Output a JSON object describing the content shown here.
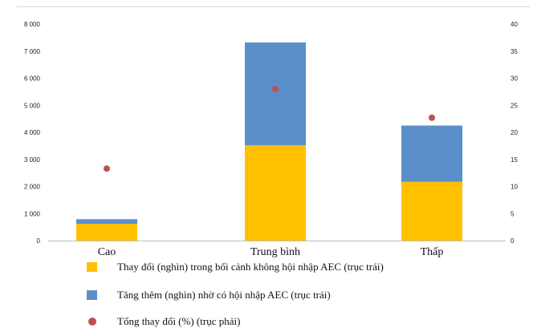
{
  "chart_data": {
    "type": "bar",
    "stacked": true,
    "categories": [
      "Cao",
      "Trung bình",
      "Thấp"
    ],
    "series": [
      {
        "name": "Thay đổi (nghìn) trong bối cảnh không hội nhập AEC (trục trái)",
        "axis": "left",
        "color": "#FFC000",
        "values": [
          620,
          3520,
          2170
        ]
      },
      {
        "name": "Tăng thêm (nghìn) nhờ có hội nhập AEC (trục trái)",
        "axis": "left",
        "color": "#5B8FC9",
        "values": [
          170,
          3800,
          2080
        ]
      },
      {
        "name": "Tổng thay đổi (%) (trục phải)",
        "axis": "right",
        "kind": "scatter",
        "color": "#C0504D",
        "values": [
          13.3,
          28,
          22.7
        ]
      }
    ],
    "ylim_left": [
      0,
      8000
    ],
    "ylim_right": [
      0,
      40
    ],
    "yticks_left": [
      "0",
      "1 000",
      "2 000",
      "3 000",
      "4 000",
      "5 000",
      "6 000",
      "7 000",
      "8 000"
    ],
    "yticks_right": [
      "0",
      "5",
      "10",
      "15",
      "20",
      "25",
      "30",
      "35",
      "40"
    ],
    "legend_position": "bottom",
    "grid": false
  }
}
